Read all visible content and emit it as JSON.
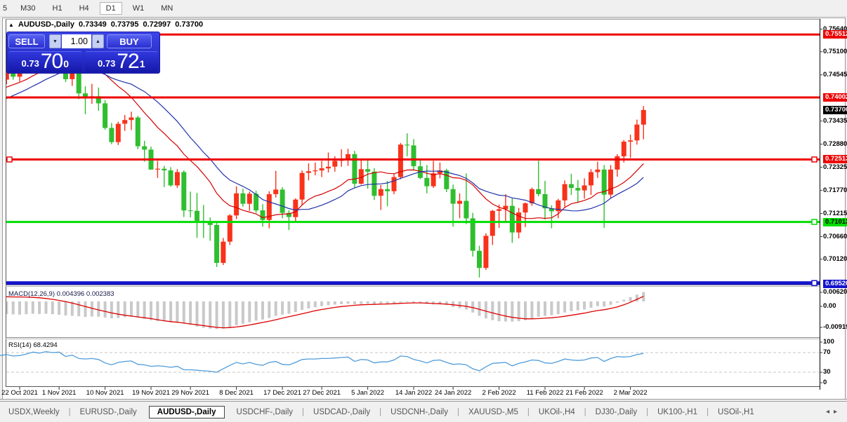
{
  "toolbar": {
    "timeframes": [
      "5",
      "M30",
      "H1",
      "H4",
      "D1",
      "W1",
      "MN"
    ],
    "active": "D1"
  },
  "chart_title": {
    "symbol": "AUDUSD-,Daily",
    "open": "0.73349",
    "high": "0.73795",
    "low": "0.72997",
    "close": "0.73700"
  },
  "trade_panel": {
    "sell_label": "SELL",
    "buy_label": "BUY",
    "volume": "1.00",
    "sell_price": {
      "base": "0.73",
      "big": "70",
      "sup": "0"
    },
    "buy_price": {
      "base": "0.73",
      "big": "72",
      "sup": "1"
    }
  },
  "indicators": {
    "macd": {
      "name": "MACD(12,26,9)",
      "main_value": "0.004396",
      "signal_value": "0.002383",
      "axis": [
        "0.006201",
        "0.00",
        "-0.00919"
      ]
    },
    "rsi": {
      "name": "RSI(14)",
      "value": "68.4294",
      "axis": [
        "100",
        "70",
        "30",
        "0"
      ]
    }
  },
  "price_axis": {
    "ticks": [
      "0.75640",
      "0.75100",
      "0.74545",
      "0.73435",
      "0.72880",
      "0.72325",
      "0.71770",
      "0.71215",
      "0.70660",
      "0.70120"
    ],
    "level_tags": [
      {
        "value": "0.75512",
        "bg": "#ee0000",
        "fg": "#ffffff"
      },
      {
        "value": "0.74002",
        "bg": "#ee0000",
        "fg": "#ffffff"
      },
      {
        "value": "0.72513",
        "bg": "#ee0000",
        "fg": "#ffffff"
      },
      {
        "value": "0.71013",
        "bg": "#00dd00",
        "fg": "#000000"
      },
      {
        "value": "0.69520",
        "bg": "#1414cc",
        "fg": "#ffffff"
      }
    ],
    "current": {
      "value": "0.73700",
      "bg": "#000000",
      "fg": "#ffffff"
    }
  },
  "tab_bar": {
    "tabs": [
      "USDX,Weekly",
      "EURUSD-,Daily",
      "AUDUSD-,Daily",
      "USDCHF-,Daily",
      "USDCAD-,Daily",
      "USDCNH-,Daily",
      "XAUUSD-,M5",
      "UKOil-,H4",
      "DJ30-,Daily",
      "UK100-,H1",
      "USOil-,H1"
    ],
    "active": "AUDUSD-,Daily"
  },
  "chart_data": {
    "type": "candlestick",
    "symbol": "AUDUSD-",
    "timeframe": "Daily",
    "title": "AUDUSD-,Daily",
    "x_label_texts": [
      "22 Oct 2021",
      "1 Nov 2021",
      "10 Nov 2021",
      "19 Nov 2021",
      "29 Nov 2021",
      "8 Dec 2021",
      "17 Dec 2021",
      "27 Dec 2021",
      "5 Jan 2022",
      "14 Jan 2022",
      "24 Jan 2022",
      "2 Feb 2022",
      "11 Feb 2022",
      "21 Feb 2022",
      "2 Mar 2022"
    ],
    "x_label_indices": [
      3,
      9,
      16,
      23,
      29,
      36,
      43,
      49,
      56,
      63,
      69,
      76,
      83,
      89,
      96
    ],
    "candles": [
      [
        0.7425,
        0.7456,
        0.7418,
        0.7443
      ],
      [
        0.7443,
        0.7469,
        0.7432,
        0.7466
      ],
      [
        0.7466,
        0.7481,
        0.7443,
        0.745
      ],
      [
        0.745,
        0.7472,
        0.7438,
        0.7466
      ],
      [
        0.7466,
        0.7505,
        0.7461,
        0.7489
      ],
      [
        0.7489,
        0.7536,
        0.7483,
        0.7523
      ],
      [
        0.7523,
        0.7529,
        0.7494,
        0.7501
      ],
      [
        0.7501,
        0.7547,
        0.7489,
        0.754
      ],
      [
        0.754,
        0.7555,
        0.7507,
        0.7518
      ],
      [
        0.7518,
        0.7536,
        0.749,
        0.7521
      ],
      [
        0.7521,
        0.7528,
        0.7437,
        0.7444
      ],
      [
        0.7444,
        0.7488,
        0.7428,
        0.747
      ],
      [
        0.747,
        0.7475,
        0.7396,
        0.741
      ],
      [
        0.741,
        0.7427,
        0.736,
        0.7398
      ],
      [
        0.7398,
        0.7433,
        0.7385,
        0.7403
      ],
      [
        0.7403,
        0.7424,
        0.7368,
        0.7386
      ],
      [
        0.7386,
        0.7394,
        0.7323,
        0.7327
      ],
      [
        0.7327,
        0.7339,
        0.7288,
        0.7293
      ],
      [
        0.7293,
        0.7342,
        0.7286,
        0.7337
      ],
      [
        0.7337,
        0.7358,
        0.732,
        0.7346
      ],
      [
        0.7346,
        0.7366,
        0.7322,
        0.7352
      ],
      [
        0.7352,
        0.7356,
        0.7276,
        0.7283
      ],
      [
        0.7283,
        0.7296,
        0.7246,
        0.7275
      ],
      [
        0.7275,
        0.7282,
        0.7227,
        0.7227
      ],
      [
        0.7227,
        0.7248,
        0.7207,
        0.7229
      ],
      [
        0.7229,
        0.7236,
        0.7185,
        0.7225
      ],
      [
        0.7225,
        0.7233,
        0.7186,
        0.7189
      ],
      [
        0.7189,
        0.7228,
        0.7183,
        0.7221
      ],
      [
        0.7221,
        0.7225,
        0.7113,
        0.7129
      ],
      [
        0.7129,
        0.7174,
        0.7112,
        0.7128
      ],
      [
        0.7128,
        0.7171,
        0.7063,
        0.7104
      ],
      [
        0.7104,
        0.7142,
        0.7063,
        0.7103
      ],
      [
        0.7103,
        0.7112,
        0.7056,
        0.7094
      ],
      [
        0.7094,
        0.7101,
        0.6993,
        0.7003
      ],
      [
        0.7003,
        0.7063,
        0.6998,
        0.7054
      ],
      [
        0.7054,
        0.712,
        0.7046,
        0.7117
      ],
      [
        0.7117,
        0.7187,
        0.7108,
        0.717
      ],
      [
        0.717,
        0.7181,
        0.7138,
        0.7145
      ],
      [
        0.7145,
        0.7174,
        0.7128,
        0.7169
      ],
      [
        0.7169,
        0.7176,
        0.7123,
        0.7129
      ],
      [
        0.7129,
        0.7144,
        0.709,
        0.7106
      ],
      [
        0.7106,
        0.7175,
        0.7086,
        0.7168
      ],
      [
        0.7168,
        0.7224,
        0.716,
        0.7179
      ],
      [
        0.7179,
        0.7185,
        0.711,
        0.7123
      ],
      [
        0.7123,
        0.7129,
        0.7082,
        0.7113
      ],
      [
        0.7113,
        0.7158,
        0.71,
        0.7155
      ],
      [
        0.7155,
        0.7225,
        0.7142,
        0.7219
      ],
      [
        0.7219,
        0.7242,
        0.7201,
        0.7223
      ],
      [
        0.7223,
        0.7244,
        0.7213,
        0.7225
      ],
      [
        0.7225,
        0.7248,
        0.7209,
        0.723
      ],
      [
        0.723,
        0.7268,
        0.722,
        0.7234
      ],
      [
        0.7234,
        0.7259,
        0.7222,
        0.7248
      ],
      [
        0.7248,
        0.7276,
        0.7234,
        0.725
      ],
      [
        0.725,
        0.7277,
        0.7236,
        0.7264
      ],
      [
        0.7264,
        0.7272,
        0.7184,
        0.7193
      ],
      [
        0.7193,
        0.725,
        0.7191,
        0.7228
      ],
      [
        0.7228,
        0.7251,
        0.7181,
        0.7222
      ],
      [
        0.7222,
        0.723,
        0.7154,
        0.7164
      ],
      [
        0.7164,
        0.719,
        0.713,
        0.718
      ],
      [
        0.718,
        0.72,
        0.7139,
        0.7175
      ],
      [
        0.7175,
        0.7217,
        0.7168,
        0.7209
      ],
      [
        0.7209,
        0.7291,
        0.7204,
        0.7287
      ],
      [
        0.7287,
        0.7314,
        0.7259,
        0.7285
      ],
      [
        0.7285,
        0.73,
        0.7225,
        0.7235
      ],
      [
        0.7235,
        0.7253,
        0.7204,
        0.7207
      ],
      [
        0.7207,
        0.7238,
        0.717,
        0.7187
      ],
      [
        0.7187,
        0.7248,
        0.7183,
        0.7218
      ],
      [
        0.7218,
        0.7244,
        0.7206,
        0.7225
      ],
      [
        0.7225,
        0.7229,
        0.7173,
        0.718
      ],
      [
        0.718,
        0.7191,
        0.709,
        0.7145
      ],
      [
        0.7145,
        0.717,
        0.711,
        0.7152
      ],
      [
        0.7152,
        0.7218,
        0.7096,
        0.711
      ],
      [
        0.711,
        0.7123,
        0.7018,
        0.7032
      ],
      [
        0.7032,
        0.7044,
        0.6968,
        0.6991
      ],
      [
        0.6991,
        0.7074,
        0.6986,
        0.7068
      ],
      [
        0.7068,
        0.713,
        0.7046,
        0.7128
      ],
      [
        0.7128,
        0.7143,
        0.7087,
        0.7132
      ],
      [
        0.7132,
        0.7168,
        0.71,
        0.714
      ],
      [
        0.714,
        0.7158,
        0.7051,
        0.7076
      ],
      [
        0.7076,
        0.7135,
        0.7062,
        0.7124
      ],
      [
        0.7124,
        0.7148,
        0.7089,
        0.7146
      ],
      [
        0.7146,
        0.7184,
        0.714,
        0.718
      ],
      [
        0.718,
        0.7248,
        0.7163,
        0.7168
      ],
      [
        0.7168,
        0.72,
        0.7107,
        0.7134
      ],
      [
        0.7134,
        0.7141,
        0.7086,
        0.7127
      ],
      [
        0.7127,
        0.7157,
        0.711,
        0.7153
      ],
      [
        0.7153,
        0.7201,
        0.7137,
        0.7192
      ],
      [
        0.7192,
        0.7217,
        0.7166,
        0.7183
      ],
      [
        0.7183,
        0.7202,
        0.7147,
        0.7177
      ],
      [
        0.7177,
        0.7206,
        0.7157,
        0.7189
      ],
      [
        0.7189,
        0.7228,
        0.7166,
        0.7221
      ],
      [
        0.7221,
        0.7246,
        0.7207,
        0.7227
      ],
      [
        0.7227,
        0.7238,
        0.7087,
        0.7167
      ],
      [
        0.7167,
        0.7238,
        0.7158,
        0.7227
      ],
      [
        0.7227,
        0.7264,
        0.721,
        0.7259
      ],
      [
        0.7259,
        0.7298,
        0.7244,
        0.7294
      ],
      [
        0.7294,
        0.7311,
        0.7255,
        0.7297
      ],
      [
        0.7297,
        0.7347,
        0.7287,
        0.7335
      ],
      [
        0.73349,
        0.73795,
        0.72997,
        0.737
      ]
    ],
    "ma_warmup_closes": [
      0.73,
      0.7312,
      0.7308,
      0.733,
      0.7345,
      0.7352,
      0.7348,
      0.7366,
      0.738,
      0.7375,
      0.7392,
      0.74,
      0.741,
      0.7398,
      0.7415,
      0.7428,
      0.7446,
      0.746,
      0.7452,
      0.744
    ],
    "ma_fast_period": 13,
    "ma_slow_period": 20,
    "macd_main": [
      -0.006,
      -0.006,
      -0.0061,
      -0.0062,
      -0.006,
      -0.0058,
      -0.0059,
      -0.0058,
      -0.006,
      -0.0063,
      -0.0066,
      -0.0068,
      -0.007,
      -0.0073,
      -0.0071,
      -0.0072,
      -0.0076,
      -0.008,
      -0.0078,
      -0.0074,
      -0.0072,
      -0.0076,
      -0.0082,
      -0.0088,
      -0.0092,
      -0.0094,
      -0.0098,
      -0.0096,
      -0.0104,
      -0.011,
      -0.0118,
      -0.0124,
      -0.0128,
      -0.013,
      -0.0128,
      -0.0122,
      -0.0112,
      -0.0105,
      -0.0098,
      -0.009,
      -0.0085,
      -0.0078,
      -0.0068,
      -0.0062,
      -0.0058,
      -0.005,
      -0.004,
      -0.0033,
      -0.0027,
      -0.0022,
      -0.0018,
      -0.0015,
      -0.0013,
      -0.0011,
      -0.0013,
      -0.0012,
      -0.0011,
      -0.0013,
      -0.0012,
      -0.0011,
      -0.0009,
      -0.0005,
      -0.0003,
      -0.0005,
      -0.0008,
      -0.0012,
      -0.0014,
      -0.0014,
      -0.0017,
      -0.0026,
      -0.0032,
      -0.0038,
      -0.0052,
      -0.0068,
      -0.008,
      -0.0088,
      -0.0093,
      -0.0094,
      -0.0095,
      -0.0093,
      -0.0088,
      -0.008,
      -0.0072,
      -0.0068,
      -0.0065,
      -0.006,
      -0.0052,
      -0.0046,
      -0.0042,
      -0.0038,
      -0.003,
      -0.0022,
      -0.0024,
      -0.0016,
      -0.0006,
      0.0008,
      0.002,
      0.0032,
      0.0044
    ],
    "macd_signal": [
      0.0022,
      0.0022,
      0.0021,
      0.0021,
      0.002,
      0.0019,
      0.0017,
      0.0014,
      0.001,
      0.0005,
      -0.0001,
      -0.0008,
      -0.0016,
      -0.0024,
      -0.0032,
      -0.004,
      -0.0047,
      -0.0054,
      -0.006,
      -0.0065,
      -0.0069,
      -0.0073,
      -0.0077,
      -0.0081,
      -0.0086,
      -0.0091,
      -0.0095,
      -0.0098,
      -0.0102,
      -0.0106,
      -0.011,
      -0.0114,
      -0.0118,
      -0.0122,
      -0.0124,
      -0.0123,
      -0.012,
      -0.0116,
      -0.0111,
      -0.0105,
      -0.0099,
      -0.0093,
      -0.0086,
      -0.0079,
      -0.0072,
      -0.0065,
      -0.0058,
      -0.0051,
      -0.0044,
      -0.0038,
      -0.0033,
      -0.0028,
      -0.0024,
      -0.0021,
      -0.0018,
      -0.0016,
      -0.0015,
      -0.0014,
      -0.0013,
      -0.0012,
      -0.0011,
      -0.0009,
      -0.0008,
      -0.0007,
      -0.0007,
      -0.0008,
      -0.001,
      -0.0011,
      -0.0013,
      -0.0016,
      -0.0019,
      -0.0023,
      -0.0029,
      -0.0037,
      -0.0046,
      -0.0054,
      -0.0062,
      -0.0069,
      -0.0075,
      -0.0079,
      -0.0082,
      -0.0082,
      -0.0081,
      -0.0079,
      -0.0077,
      -0.0074,
      -0.007,
      -0.0065,
      -0.006,
      -0.0055,
      -0.0049,
      -0.0043,
      -0.0039,
      -0.0033,
      -0.0026,
      -0.0016,
      -0.0004,
      0.001,
      0.0024
    ],
    "rsi": [
      64,
      66,
      63,
      64,
      67,
      71,
      69,
      72,
      70,
      71,
      62,
      65,
      58,
      57,
      58,
      56,
      49,
      45,
      50,
      52,
      53,
      46,
      45,
      42,
      43,
      42,
      40,
      42,
      35,
      35,
      34,
      33,
      32,
      30,
      37,
      44,
      50,
      47,
      50,
      46,
      44,
      50,
      52,
      46,
      45,
      50,
      56,
      57,
      57,
      58,
      58,
      59,
      60,
      61,
      52,
      56,
      55,
      49,
      51,
      51,
      55,
      63,
      62,
      56,
      53,
      49,
      54,
      55,
      50,
      46,
      47,
      45,
      37,
      33,
      41,
      48,
      49,
      50,
      43,
      48,
      51,
      55,
      54,
      49,
      48,
      52,
      57,
      55,
      54,
      55,
      59,
      60,
      52,
      58,
      62,
      61,
      62,
      66,
      68.4
    ],
    "h_lines": [
      {
        "price": 0.75512,
        "color": "#ee0000",
        "width": 3,
        "handles": false
      },
      {
        "price": 0.74002,
        "color": "#ee0000",
        "width": 3,
        "handles": false
      },
      {
        "price": 0.72513,
        "color": "#ee0000",
        "width": 3,
        "handles": true
      },
      {
        "price": 0.71013,
        "color": "#00dd00",
        "width": 3,
        "handles": true
      },
      {
        "price": 0.6952,
        "color": "#1414cc",
        "width": 5,
        "handles": true
      }
    ],
    "current_price": 0.737,
    "colors": {
      "bull": "#f8321b",
      "bear": "#2fbe2f",
      "ma_fast": "#d40000",
      "ma_slow": "#2232aa",
      "macd_hist": "#c9c9c9",
      "macd_signal": "#dd0000",
      "rsi_line": "#4f9cdb",
      "grid_dashed": "#c6c6c6"
    }
  }
}
